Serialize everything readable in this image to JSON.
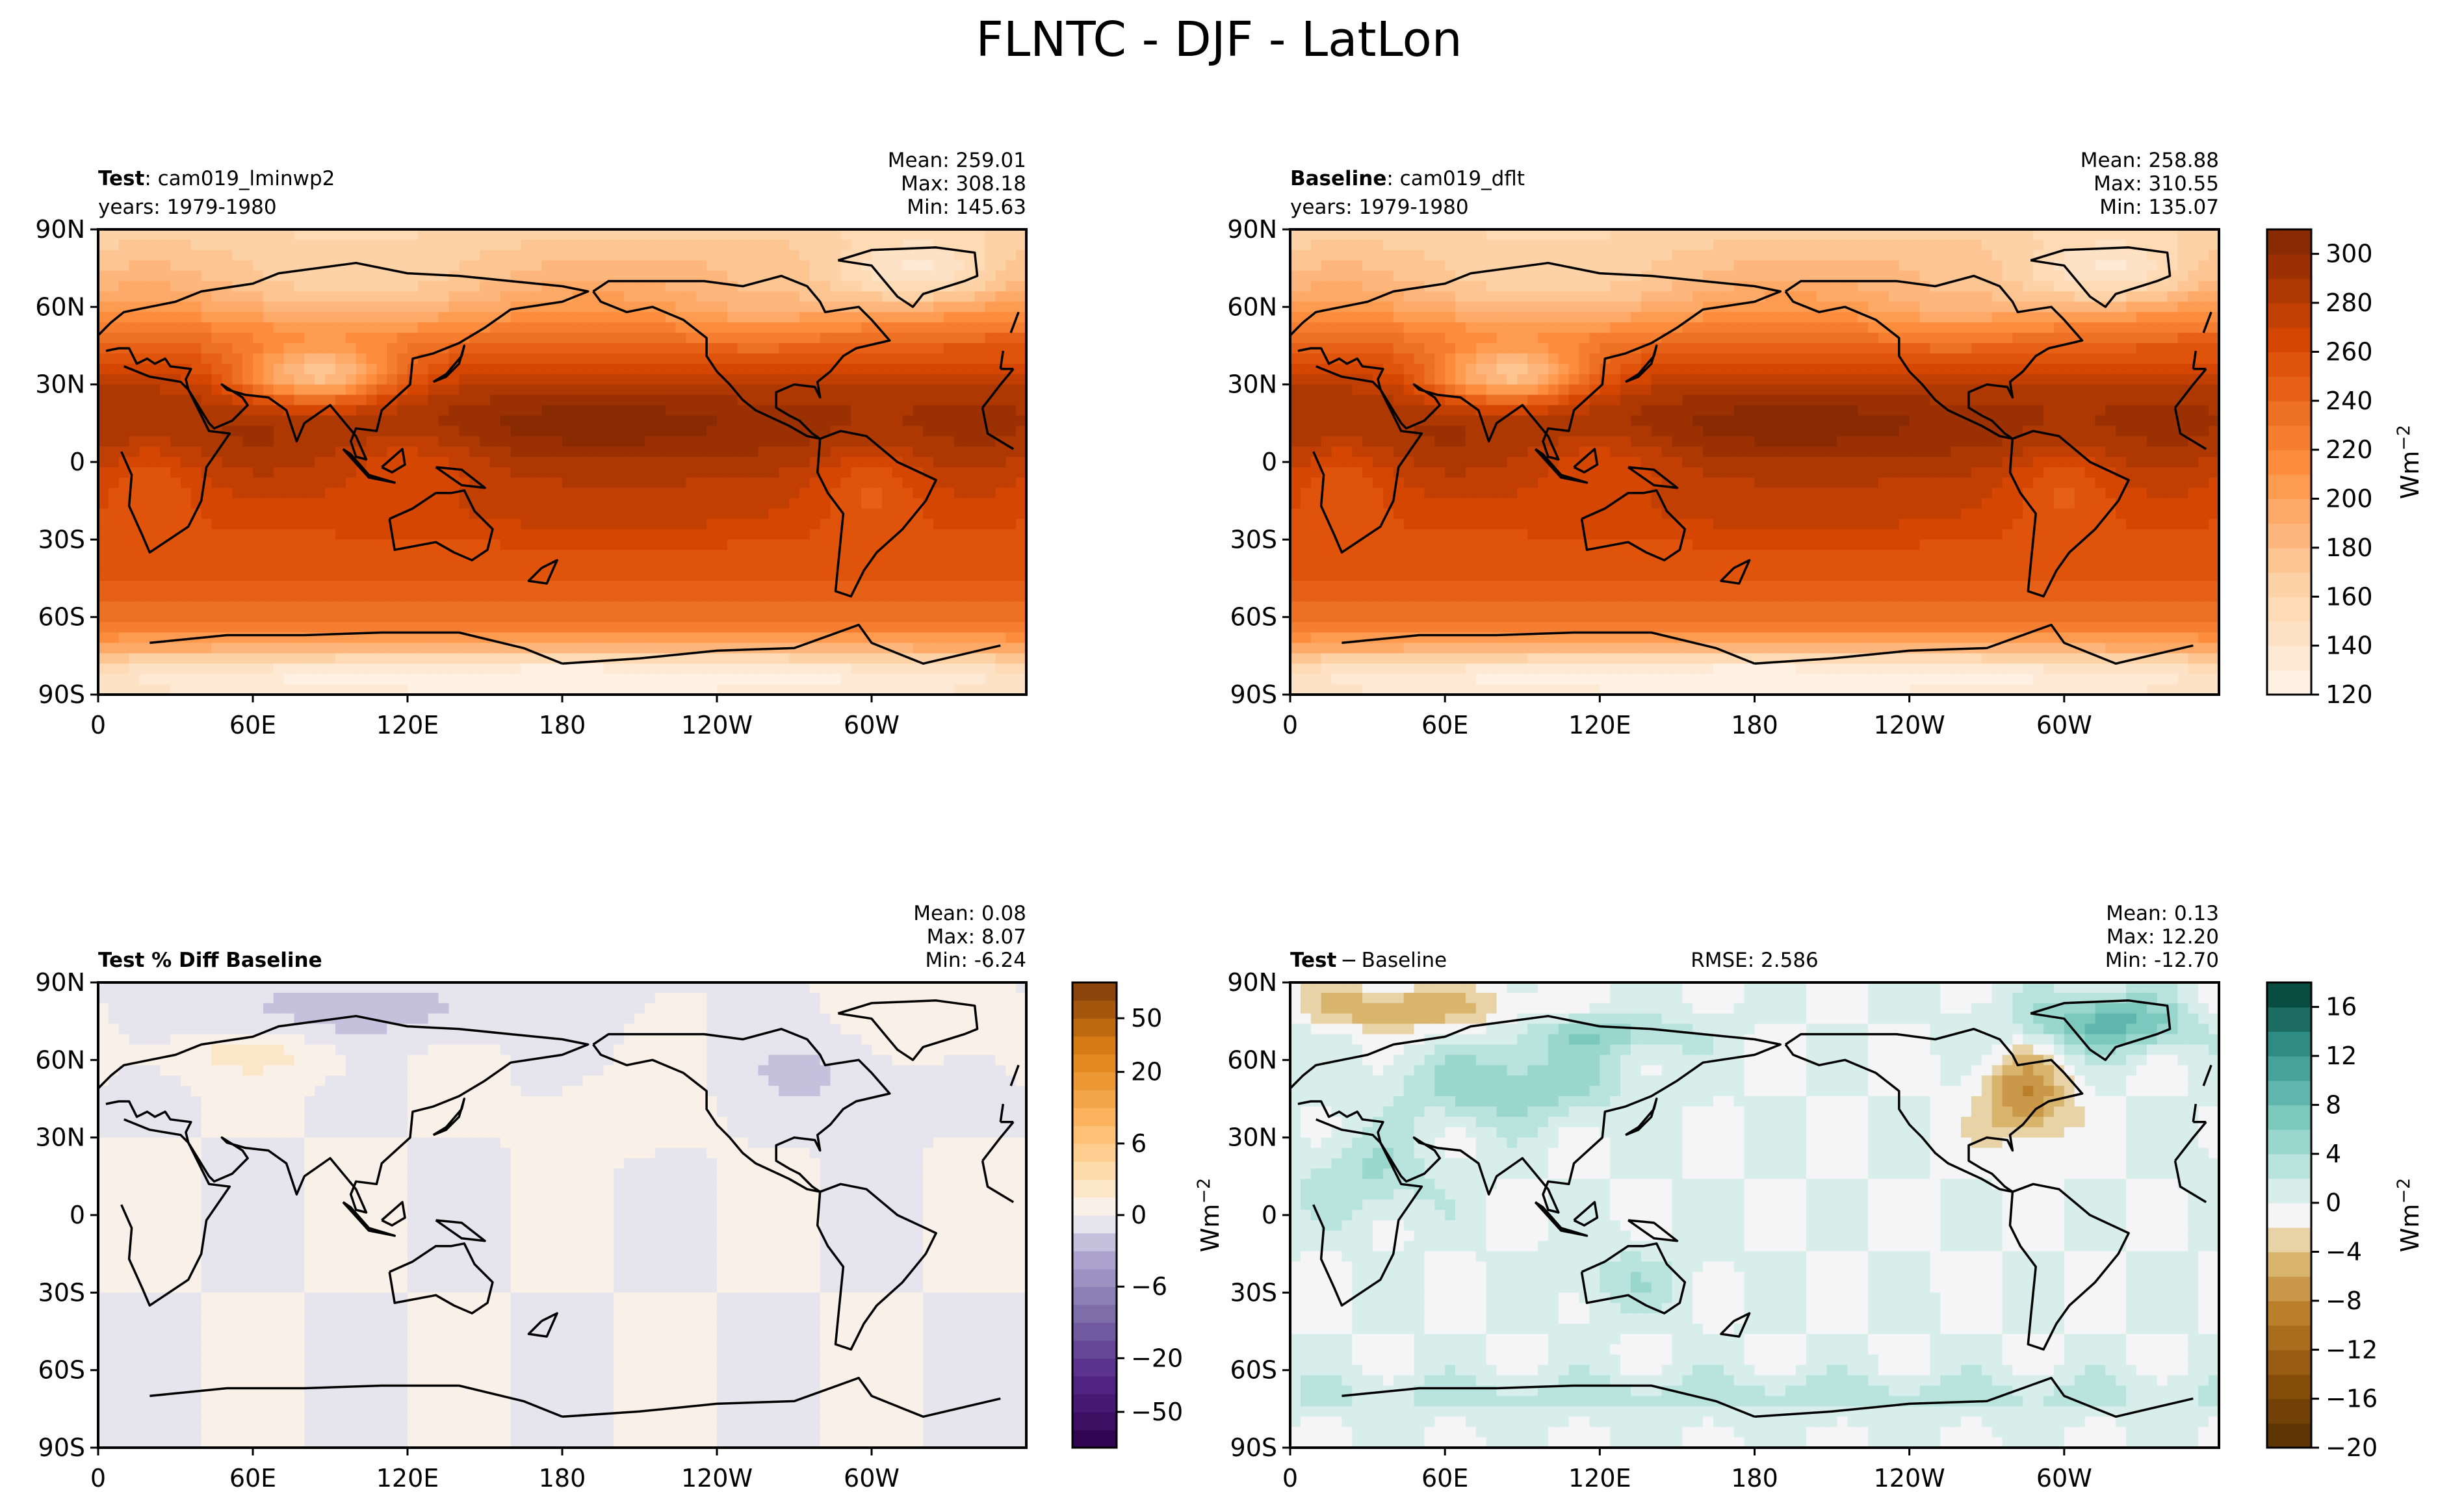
{
  "figure": {
    "title": "FLNTC - DJF - LatLon"
  },
  "chart_data": [
    {
      "type": "heatmap",
      "panel": "top-left",
      "left_title": {
        "bold": "Test",
        "rest": ": cam019_lminwp2"
      },
      "left_subtitle": "years: 1979-1980",
      "stats": [
        "Mean: 259.01",
        "Max: 308.18",
        "Min: 145.63"
      ],
      "field": "flntc",
      "stats_values": {
        "mean": 259.01,
        "max": 308.18,
        "min": 145.63
      },
      "x_ticks": [
        "0",
        "60E",
        "120E",
        "180",
        "120W",
        "60W"
      ],
      "y_ticks": [
        "90N",
        "60N",
        "30N",
        "0",
        "30S",
        "60S",
        "90S"
      ],
      "vlim": [
        120,
        310
      ],
      "colormap": "Oranges"
    },
    {
      "type": "heatmap",
      "panel": "top-right",
      "left_title": {
        "bold": "Baseline",
        "rest": ": cam019_dflt"
      },
      "left_subtitle": "years: 1979-1980",
      "stats": [
        "Mean: 258.88",
        "Max: 310.55",
        "Min: 135.07"
      ],
      "field": "flntc",
      "stats_values": {
        "mean": 258.88,
        "max": 310.55,
        "min": 135.07
      },
      "x_ticks": [
        "0",
        "60E",
        "120E",
        "180",
        "120W",
        "60W"
      ],
      "y_ticks": [
        "90N",
        "60N",
        "30N",
        "0",
        "30S",
        "60S",
        "90S"
      ],
      "vlim": [
        120,
        310
      ],
      "colormap": "Oranges",
      "colorbar": {
        "ticks": [
          "300",
          "280",
          "260",
          "240",
          "220",
          "200",
          "180",
          "160",
          "140",
          "120"
        ],
        "tick_values": [
          300,
          280,
          260,
          240,
          220,
          200,
          180,
          160,
          140,
          120
        ],
        "label": "Wm",
        "label_sup": "−2"
      }
    },
    {
      "type": "heatmap",
      "panel": "bottom-left",
      "left_title": {
        "bold": "Test % Diff Baseline",
        "rest": ""
      },
      "stats": [
        "Mean:  0.08",
        "Max:  8.07",
        "Min: -6.24"
      ],
      "field": "pctdiff",
      "stats_values": {
        "mean": 0.08,
        "max": 8.07,
        "min": -6.24
      },
      "x_ticks": [
        "0",
        "60E",
        "120E",
        "180",
        "120W",
        "60W"
      ],
      "y_ticks": [
        "90N",
        "60N",
        "30N",
        "0",
        "30S",
        "60S",
        "90S"
      ],
      "colormap": "PuOr_r",
      "colorbar": {
        "ticks": [
          "50",
          "20",
          "6",
          "0",
          "−6",
          "−20",
          "−50"
        ],
        "levels": [
          -100,
          -75,
          -50,
          -40,
          -30,
          -20,
          -15,
          -10,
          -8,
          -6,
          -4,
          -2,
          -1,
          0,
          1,
          2,
          4,
          6,
          8,
          10,
          15,
          20,
          30,
          40,
          50,
          75,
          100
        ],
        "label": "",
        "label_sup": ""
      }
    },
    {
      "type": "heatmap",
      "panel": "bottom-right",
      "left_title": {
        "bold": "Test",
        "rest": " − Baseline"
      },
      "center_title": "RMSE: 2.586",
      "stats": [
        "Mean:  0.13",
        "Max: 12.20",
        "Min: -12.70"
      ],
      "field": "diff",
      "stats_values": {
        "mean": 0.13,
        "max": 12.2,
        "min": -12.7
      },
      "x_ticks": [
        "0",
        "60E",
        "120E",
        "180",
        "120W",
        "60W"
      ],
      "y_ticks": [
        "90N",
        "60N",
        "30N",
        "0",
        "30S",
        "60S",
        "90S"
      ],
      "colormap": "BrBG",
      "colorbar": {
        "ticks": [
          "16",
          "12",
          "8",
          "4",
          "0",
          "−4",
          "−8",
          "−12",
          "−16",
          "−20"
        ],
        "tick_values": [
          16,
          12,
          8,
          4,
          0,
          -4,
          -8,
          -12,
          -16,
          -20
        ],
        "vlim": [
          -20,
          18
        ],
        "label": "Wm",
        "label_sup": "−2"
      },
      "left_axis_label": "Wm",
      "left_axis_label_sup": "−2"
    }
  ]
}
